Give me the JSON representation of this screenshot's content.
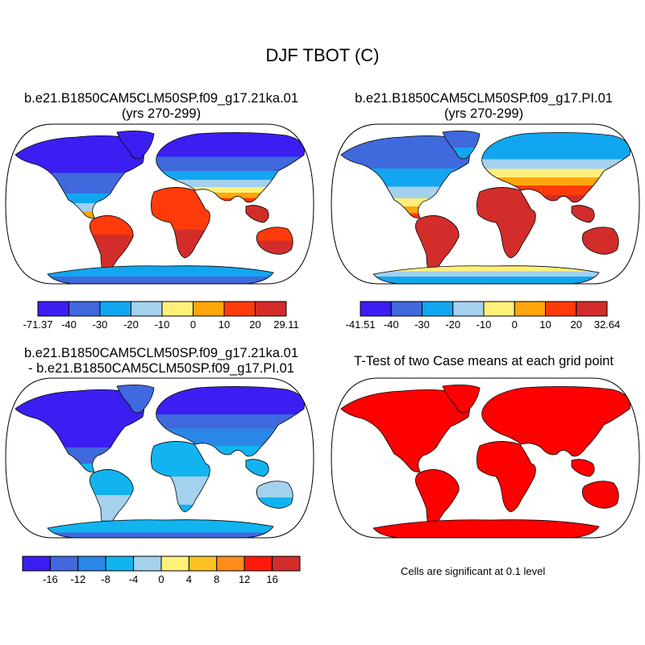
{
  "title": "DJF TBOT (C)",
  "panels": [
    {
      "id": "case1",
      "title_line1": "b.e21.B1850CAM5CLM50SP.f09_g17.21ka.01",
      "title_line2": "(yrs 270-299)",
      "colorbar": {
        "colors": [
          "#3b1ff2",
          "#3f69dc",
          "#12a6f0",
          "#a3d1ee",
          "#fff07a",
          "#ffa60c",
          "#ff3b0b",
          "#d22d2a"
        ],
        "labels": [
          "-71.37",
          "-40",
          "-30",
          "-20",
          "-10",
          "0",
          "10",
          "20",
          "29.11"
        ]
      }
    },
    {
      "id": "case2",
      "title_line1": "b.e21.B1850CAM5CLM50SP.f09_g17.PI.01",
      "title_line2": "(yrs 270-299)",
      "colorbar": {
        "colors": [
          "#3b1ff2",
          "#3f69dc",
          "#12a6f0",
          "#a3d1ee",
          "#fff07a",
          "#ffa60c",
          "#ff3b0b",
          "#d22d2a"
        ],
        "labels": [
          "-41.51",
          "-40",
          "-30",
          "-20",
          "-10",
          "0",
          "10",
          "20",
          "32.64"
        ]
      }
    },
    {
      "id": "diff",
      "title_line1": "b.e21.B1850CAM5CLM50SP.f09_g17.21ka.01",
      "title_line2": "- b.e21.B1850CAM5CLM50SP.f09_g17.PI.01",
      "colorbar": {
        "colors": [
          "#3b1ff2",
          "#3f69dc",
          "#2a87e8",
          "#12b4f0",
          "#a3d1ee",
          "#fff07a",
          "#ffc223",
          "#ff8c1a",
          "#ff1a0b",
          "#d22d2a"
        ],
        "labels": [
          "-16",
          "-12",
          "-8",
          "-4",
          "0",
          "4",
          "8",
          "12",
          "16"
        ]
      }
    },
    {
      "id": "ttest",
      "title_line1": "T-Test of two Case means at each grid point",
      "note": "Cells are significant at 0.1 level"
    }
  ]
}
